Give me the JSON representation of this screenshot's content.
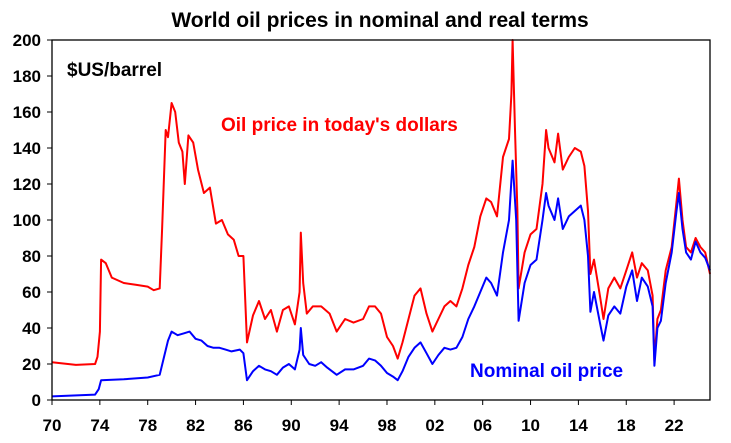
{
  "chart_data": {
    "type": "line",
    "title": "World oil prices in nominal and real terms",
    "ylabel": "$US/barrel",
    "xlabel": "",
    "xlim": [
      1970,
      2025
    ],
    "ylim": [
      0,
      200
    ],
    "x_ticks": [
      1970,
      1974,
      1978,
      1982,
      1986,
      1990,
      1994,
      1998,
      2002,
      2006,
      2010,
      2014,
      2018,
      2022
    ],
    "x_tick_labels": [
      "70",
      "74",
      "78",
      "82",
      "86",
      "90",
      "94",
      "98",
      "02",
      "06",
      "10",
      "14",
      "18",
      "22"
    ],
    "y_ticks": [
      0,
      20,
      40,
      60,
      80,
      100,
      120,
      140,
      160,
      180,
      200
    ],
    "y_tick_labels": [
      "0",
      "20",
      "40",
      "60",
      "80",
      "100",
      "120",
      "140",
      "160",
      "180",
      "200"
    ],
    "grid": false,
    "series": [
      {
        "name": "Oil price in today's dollars",
        "color": "#ff0000",
        "points": [
          [
            1970,
            21
          ],
          [
            1972,
            19.5
          ],
          [
            1973.6,
            20
          ],
          [
            1973.8,
            24
          ],
          [
            1974.0,
            38
          ],
          [
            1974.1,
            78
          ],
          [
            1974.5,
            76
          ],
          [
            1975,
            68
          ],
          [
            1976,
            65
          ],
          [
            1977,
            64
          ],
          [
            1978,
            63
          ],
          [
            1978.5,
            61
          ],
          [
            1979.0,
            62
          ],
          [
            1979.2,
            95
          ],
          [
            1979.5,
            150
          ],
          [
            1979.7,
            146
          ],
          [
            1980.0,
            165
          ],
          [
            1980.3,
            160
          ],
          [
            1980.6,
            143
          ],
          [
            1980.9,
            138
          ],
          [
            1981.1,
            120
          ],
          [
            1981.4,
            147
          ],
          [
            1981.8,
            143
          ],
          [
            1982.2,
            128
          ],
          [
            1982.7,
            115
          ],
          [
            1983.2,
            118
          ],
          [
            1983.7,
            98
          ],
          [
            1984.2,
            100
          ],
          [
            1984.7,
            92
          ],
          [
            1985.2,
            89
          ],
          [
            1985.6,
            80
          ],
          [
            1986.0,
            80
          ],
          [
            1986.3,
            32
          ],
          [
            1986.8,
            47
          ],
          [
            1987.3,
            55
          ],
          [
            1987.8,
            45
          ],
          [
            1988.3,
            50
          ],
          [
            1988.8,
            38
          ],
          [
            1989.3,
            50
          ],
          [
            1989.8,
            52
          ],
          [
            1990.3,
            42
          ],
          [
            1990.7,
            60
          ],
          [
            1990.8,
            93
          ],
          [
            1991.0,
            65
          ],
          [
            1991.3,
            48
          ],
          [
            1991.8,
            52
          ],
          [
            1992.5,
            52
          ],
          [
            1993.2,
            48
          ],
          [
            1993.8,
            38
          ],
          [
            1994.5,
            45
          ],
          [
            1995.2,
            43
          ],
          [
            1996.0,
            45
          ],
          [
            1996.5,
            52
          ],
          [
            1997.0,
            52
          ],
          [
            1997.5,
            48
          ],
          [
            1998.0,
            35
          ],
          [
            1998.5,
            30
          ],
          [
            1998.9,
            23
          ],
          [
            1999.3,
            32
          ],
          [
            1999.8,
            45
          ],
          [
            2000.3,
            58
          ],
          [
            2000.8,
            62
          ],
          [
            2001.3,
            48
          ],
          [
            2001.8,
            38
          ],
          [
            2002.3,
            45
          ],
          [
            2002.8,
            52
          ],
          [
            2003.3,
            55
          ],
          [
            2003.8,
            52
          ],
          [
            2004.3,
            62
          ],
          [
            2004.8,
            75
          ],
          [
            2005.3,
            85
          ],
          [
            2005.8,
            102
          ],
          [
            2006.3,
            112
          ],
          [
            2006.7,
            110
          ],
          [
            2007.2,
            102
          ],
          [
            2007.7,
            135
          ],
          [
            2008.2,
            145
          ],
          [
            2008.4,
            170
          ],
          [
            2008.5,
            200
          ],
          [
            2008.7,
            150
          ],
          [
            2008.9,
            105
          ],
          [
            2009.0,
            62
          ],
          [
            2009.5,
            82
          ],
          [
            2010.0,
            92
          ],
          [
            2010.5,
            95
          ],
          [
            2011.0,
            120
          ],
          [
            2011.3,
            150
          ],
          [
            2011.5,
            140
          ],
          [
            2012.0,
            132
          ],
          [
            2012.3,
            148
          ],
          [
            2012.7,
            128
          ],
          [
            2013.2,
            135
          ],
          [
            2013.7,
            140
          ],
          [
            2014.2,
            138
          ],
          [
            2014.5,
            130
          ],
          [
            2014.8,
            105
          ],
          [
            2015.0,
            70
          ],
          [
            2015.3,
            78
          ],
          [
            2015.8,
            58
          ],
          [
            2016.1,
            45
          ],
          [
            2016.5,
            62
          ],
          [
            2017.0,
            68
          ],
          [
            2017.5,
            62
          ],
          [
            2018.0,
            72
          ],
          [
            2018.5,
            82
          ],
          [
            2018.9,
            68
          ],
          [
            2019.3,
            76
          ],
          [
            2019.8,
            72
          ],
          [
            2020.2,
            58
          ],
          [
            2020.35,
            22
          ],
          [
            2020.6,
            45
          ],
          [
            2020.9,
            50
          ],
          [
            2021.3,
            72
          ],
          [
            2021.8,
            85
          ],
          [
            2022.2,
            110
          ],
          [
            2022.4,
            123
          ],
          [
            2022.7,
            100
          ],
          [
            2023.0,
            85
          ],
          [
            2023.4,
            82
          ],
          [
            2023.8,
            90
          ],
          [
            2024.2,
            85
          ],
          [
            2024.6,
            82
          ],
          [
            2025.0,
            70
          ]
        ]
      },
      {
        "name": "Nominal oil price",
        "color": "#0000ff",
        "points": [
          [
            1970,
            2
          ],
          [
            1973.6,
            3
          ],
          [
            1973.9,
            6
          ],
          [
            1974.1,
            11
          ],
          [
            1976,
            11.5
          ],
          [
            1978,
            12.5
          ],
          [
            1979.0,
            14
          ],
          [
            1979.4,
            25
          ],
          [
            1979.7,
            33
          ],
          [
            1980.0,
            38
          ],
          [
            1980.5,
            36
          ],
          [
            1981.0,
            37
          ],
          [
            1981.5,
            38
          ],
          [
            1982.0,
            34
          ],
          [
            1982.5,
            33
          ],
          [
            1983.0,
            30
          ],
          [
            1983.5,
            29
          ],
          [
            1984.0,
            29
          ],
          [
            1984.5,
            28
          ],
          [
            1985.0,
            27
          ],
          [
            1985.7,
            28
          ],
          [
            1986.0,
            26
          ],
          [
            1986.3,
            11
          ],
          [
            1986.8,
            16
          ],
          [
            1987.3,
            19
          ],
          [
            1987.8,
            17
          ],
          [
            1988.3,
            16
          ],
          [
            1988.8,
            14
          ],
          [
            1989.3,
            18
          ],
          [
            1989.8,
            20
          ],
          [
            1990.3,
            17
          ],
          [
            1990.7,
            28
          ],
          [
            1990.8,
            40
          ],
          [
            1991.0,
            25
          ],
          [
            1991.5,
            20
          ],
          [
            1992.0,
            19
          ],
          [
            1992.5,
            21
          ],
          [
            1993.0,
            18
          ],
          [
            1993.8,
            14
          ],
          [
            1994.5,
            17
          ],
          [
            1995.2,
            17
          ],
          [
            1996.0,
            19
          ],
          [
            1996.5,
            23
          ],
          [
            1997.0,
            22
          ],
          [
            1997.5,
            19
          ],
          [
            1998.0,
            15
          ],
          [
            1998.5,
            13
          ],
          [
            1998.9,
            11
          ],
          [
            1999.3,
            16
          ],
          [
            1999.8,
            24
          ],
          [
            2000.3,
            29
          ],
          [
            2000.8,
            32
          ],
          [
            2001.3,
            26
          ],
          [
            2001.8,
            20
          ],
          [
            2002.3,
            25
          ],
          [
            2002.8,
            29
          ],
          [
            2003.3,
            28
          ],
          [
            2003.8,
            29
          ],
          [
            2004.3,
            35
          ],
          [
            2004.8,
            45
          ],
          [
            2005.3,
            52
          ],
          [
            2005.8,
            60
          ],
          [
            2006.3,
            68
          ],
          [
            2006.7,
            65
          ],
          [
            2007.2,
            58
          ],
          [
            2007.7,
            82
          ],
          [
            2008.2,
            100
          ],
          [
            2008.5,
            133
          ],
          [
            2008.8,
            100
          ],
          [
            2009.0,
            44
          ],
          [
            2009.5,
            65
          ],
          [
            2010.0,
            75
          ],
          [
            2010.5,
            78
          ],
          [
            2011.0,
            100
          ],
          [
            2011.3,
            115
          ],
          [
            2011.5,
            108
          ],
          [
            2012.0,
            100
          ],
          [
            2012.3,
            112
          ],
          [
            2012.7,
            95
          ],
          [
            2013.2,
            102
          ],
          [
            2013.7,
            105
          ],
          [
            2014.2,
            108
          ],
          [
            2014.5,
            100
          ],
          [
            2014.8,
            80
          ],
          [
            2015.0,
            49
          ],
          [
            2015.3,
            60
          ],
          [
            2015.8,
            43
          ],
          [
            2016.1,
            33
          ],
          [
            2016.5,
            47
          ],
          [
            2017.0,
            52
          ],
          [
            2017.5,
            48
          ],
          [
            2018.0,
            63
          ],
          [
            2018.5,
            72
          ],
          [
            2018.9,
            55
          ],
          [
            2019.3,
            68
          ],
          [
            2019.8,
            63
          ],
          [
            2020.2,
            52
          ],
          [
            2020.35,
            19
          ],
          [
            2020.6,
            40
          ],
          [
            2020.9,
            44
          ],
          [
            2021.3,
            65
          ],
          [
            2021.8,
            82
          ],
          [
            2022.2,
            105
          ],
          [
            2022.4,
            115
          ],
          [
            2022.7,
            95
          ],
          [
            2023.0,
            82
          ],
          [
            2023.4,
            78
          ],
          [
            2023.8,
            88
          ],
          [
            2024.2,
            82
          ],
          [
            2024.6,
            79
          ],
          [
            2025.0,
            72
          ]
        ]
      }
    ]
  },
  "annotations": {
    "real_label": "Oil price in today's dollars",
    "nominal_label": "Nominal oil price"
  }
}
